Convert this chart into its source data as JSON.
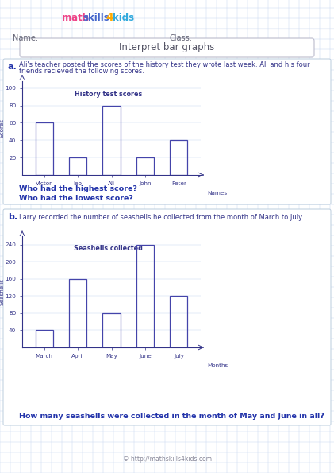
{
  "title": "Interpret bar graphs",
  "grid_color": "#c8d8f0",
  "bar_edge_color": "#4444aa",
  "text_color": "#2233aa",
  "label_color": "#333388",
  "dark_label": "#444466",
  "section_a_label": "a.",
  "section_a_line1": "Ali's teacher posted the scores of the history test they wrote last week. Ali and his four",
  "section_a_line2": "friends recieved the following scores.",
  "chart_a_title": "History test scores",
  "chart_a_ylabel": "Scores",
  "chart_a_xlabel": "Names",
  "chart_a_names": [
    "Victor",
    "Ieo",
    "Ali",
    "John",
    "Peter"
  ],
  "chart_a_values": [
    60,
    20,
    80,
    20,
    40
  ],
  "chart_a_yticks": [
    20,
    40,
    60,
    80,
    100
  ],
  "chart_a_ylim": [
    0,
    108
  ],
  "q_a1": "Who had the highest score?",
  "q_a2": "Who had the lowest score?",
  "section_b_label": "b.",
  "section_b_text": "Larry recorded the number of seashells he collected from the month of March to July.",
  "chart_b_title": "Seashells collected",
  "chart_b_ylabel": "Seashells",
  "chart_b_xlabel": "Months",
  "chart_b_names": [
    "March",
    "April",
    "May",
    "June",
    "July"
  ],
  "chart_b_values": [
    40,
    160,
    80,
    240,
    120
  ],
  "chart_b_yticks": [
    40,
    80,
    120,
    160,
    200,
    240
  ],
  "chart_b_ylim": [
    0,
    260
  ],
  "q_b1": "How many seashells were collected in the month of May and June in all?",
  "footer_text": "© http://mathskills4kids.com",
  "name_label": "Name:",
  "class_label": "Class:",
  "logo_math_color": "#ee4488",
  "logo_skills_color": "#4466cc",
  "logo_4_color": "#ffaa00",
  "logo_kids_color": "#33aadd"
}
